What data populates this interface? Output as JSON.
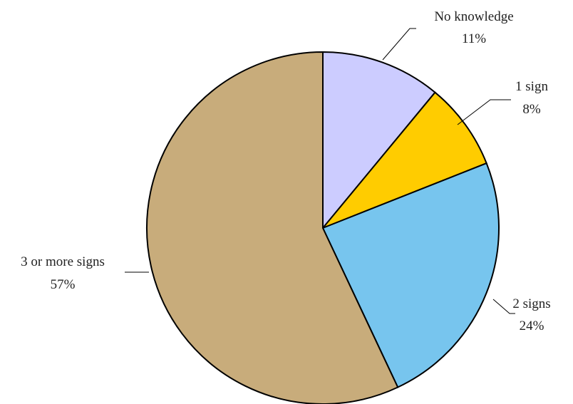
{
  "chart_data": {
    "type": "pie",
    "start_angle_deg": 0,
    "direction": "clockwise",
    "slices": [
      {
        "label": "No knowledge",
        "value": 11,
        "value_label": "11%",
        "color": "#CCCCFF"
      },
      {
        "label": "1 sign",
        "value": 8,
        "value_label": "8%",
        "color": "#FFCC00"
      },
      {
        "label": "2 signs",
        "value": 24,
        "value_label": "24%",
        "color": "#77C5EE"
      },
      {
        "label": "3 or more signs",
        "value": 57,
        "value_label": "57%",
        "color": "#C8AC7B"
      }
    ],
    "stroke_color": "#000000",
    "legend": "none"
  }
}
